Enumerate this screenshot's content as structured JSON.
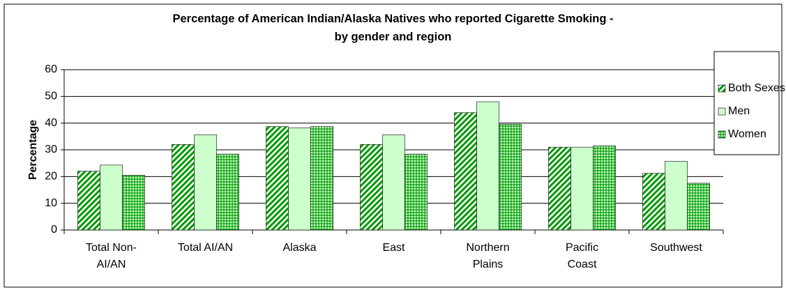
{
  "chart_data": {
    "type": "bar",
    "title": "Percentage of American Indian/Alaska Natives who reported Cigarette Smoking -\nby gender and region",
    "ylabel": "Percentage",
    "categories": [
      "Total Non-\nAI/AN",
      "Total AI/AN",
      "Alaska",
      "East",
      "Northern\nPlains",
      "Pacific\nCoast",
      "Southwest"
    ],
    "series": [
      {
        "name": "Both Sexes",
        "color": "#009900",
        "pattern": "diagonal",
        "values": [
          22,
          32,
          38.7,
          32,
          43.9,
          31,
          21.2
        ]
      },
      {
        "name": "Men",
        "color": "#ccffcc",
        "pattern": "solid",
        "values": [
          24.3,
          35.6,
          38.2,
          35.6,
          48,
          31,
          25.7
        ]
      },
      {
        "name": "Women",
        "color": "#009900",
        "pattern": "grid",
        "values": [
          20.5,
          28.4,
          38.7,
          28.4,
          39.6,
          31.5,
          17.5
        ]
      }
    ],
    "ylim": [
      0,
      60
    ],
    "yticks": [
      0,
      10,
      20,
      30,
      40,
      50,
      60
    ],
    "grid": true,
    "legend": "right"
  }
}
